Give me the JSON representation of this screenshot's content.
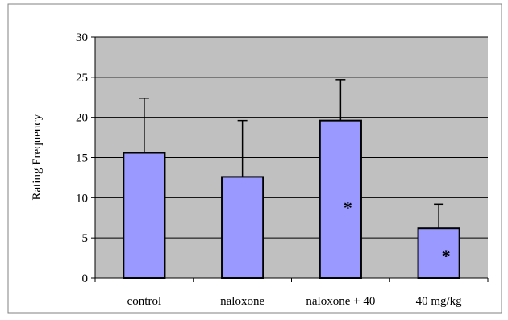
{
  "chart_data": {
    "type": "bar",
    "categories": [
      "control",
      "naloxone",
      "naloxone + 40",
      "40 mg/kg"
    ],
    "values": [
      15.6,
      12.6,
      19.6,
      6.2
    ],
    "error_upper": [
      22.4,
      19.6,
      24.7,
      9.2
    ],
    "significance": [
      "",
      "",
      "*",
      "*"
    ],
    "title": "",
    "xlabel": "",
    "ylabel": "Rating Frequency",
    "ylim": [
      0,
      30
    ],
    "yticks": [
      "0",
      "5",
      "10",
      "15",
      "20",
      "25",
      "30"
    ],
    "grid": true,
    "legend": "none",
    "colors": {
      "bar": "#9999ff",
      "plot_background": "#c0c0c0",
      "grid": "#000000",
      "frame": "#808080"
    }
  }
}
